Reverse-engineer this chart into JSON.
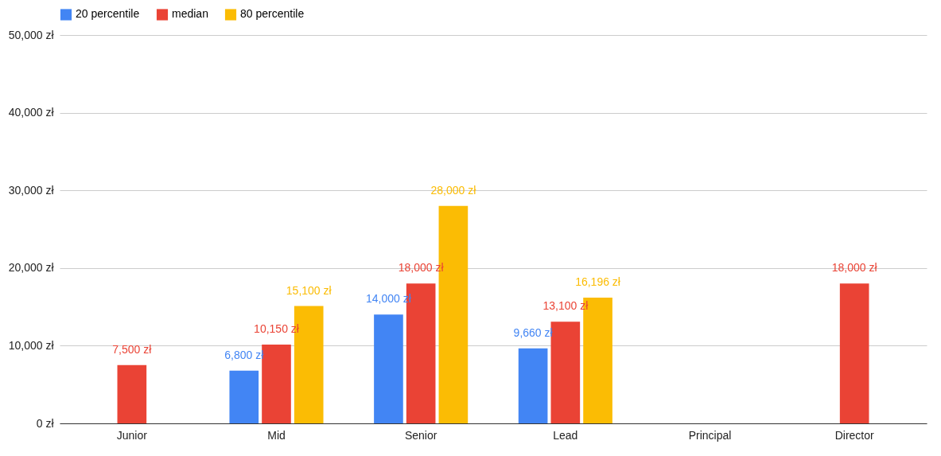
{
  "chart_data": {
    "type": "bar",
    "categories": [
      "Junior",
      "Mid",
      "Senior",
      "Lead",
      "Principal",
      "Director"
    ],
    "series": [
      {
        "name": "20 percentile",
        "color": "#4285f4",
        "values": [
          null,
          6800,
          14000,
          9660,
          null,
          null
        ],
        "value_labels": [
          null,
          "6,800 zł",
          "14,000 zł",
          "9,660 zł",
          null,
          null
        ]
      },
      {
        "name": "median",
        "color": "#ea4335",
        "values": [
          7500,
          10150,
          18000,
          13100,
          null,
          18000
        ],
        "value_labels": [
          "7,500 zł",
          "10,150 zł",
          "18,000 zł",
          "13,100 zł",
          null,
          "18,000 zł"
        ]
      },
      {
        "name": "80 percentile",
        "color": "#fbbc04",
        "values": [
          null,
          15100,
          28000,
          16196,
          null,
          null
        ],
        "value_labels": [
          null,
          "15,100 zł",
          "28,000 zł",
          "16,196 zł",
          null,
          null
        ]
      }
    ],
    "ylim": [
      0,
      50000
    ],
    "yticks": [
      {
        "value": 0,
        "label": "0 zł"
      },
      {
        "value": 10000,
        "label": "10,000 zł"
      },
      {
        "value": 20000,
        "label": "20,000 zł"
      },
      {
        "value": 30000,
        "label": "30,000 zł"
      },
      {
        "value": 40000,
        "label": "40,000 zł"
      },
      {
        "value": 50000,
        "label": "50,000 zł"
      }
    ],
    "grid": "y",
    "legend": "top"
  }
}
